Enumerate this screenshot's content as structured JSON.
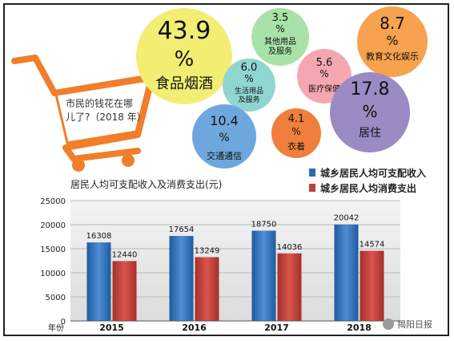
{
  "bubbles": [
    {
      "pct": "43.9",
      "unit": "%",
      "label": "食品烟酒",
      "color": "#f2ee74"
    },
    {
      "pct": "3.5",
      "unit": "%",
      "label": "其他用品\n及服务",
      "color": "#a8e2a8"
    },
    {
      "pct": "8.7",
      "unit": "%",
      "label": "教育文化娱乐",
      "color": "#f7a24e"
    },
    {
      "pct": "6.0",
      "unit": "%",
      "label": "生活用品\n及服务",
      "color": "#8fd5d0"
    },
    {
      "pct": "5.6",
      "unit": "%",
      "label": "医疗保健",
      "color": "#f4a7b0"
    },
    {
      "pct": "17.8",
      "unit": "%",
      "label": "居住",
      "color": "#9b8ac4"
    },
    {
      "pct": "10.4",
      "unit": "%",
      "label": "交通通信",
      "color": "#6ea7dd"
    },
    {
      "pct": "4.1",
      "unit": "%",
      "label": "衣着",
      "color": "#f07e3c"
    }
  ],
  "cart": {
    "text_line1": "市民的钱花在哪",
    "text_line2": "儿了?（2018 年）",
    "color": "#f07e2a"
  },
  "chart_data": {
    "type": "bar",
    "title": "居民人均可支配收入及消费支出(元)",
    "xlabel": "年份",
    "categories": [
      "2015",
      "2016",
      "2017",
      "2018"
    ],
    "series": [
      {
        "name": "城乡居民人均可支配收入",
        "values": [
          16308,
          17654,
          18750,
          20042
        ],
        "color": "#2f6bb3"
      },
      {
        "name": "城乡居民人均消费支出",
        "values": [
          12440,
          13249,
          14036,
          14574
        ],
        "color": "#c0403a"
      }
    ],
    "ylim": [
      0,
      25000
    ],
    "yticks": [
      0,
      5000,
      10000,
      15000,
      20000,
      25000
    ],
    "grid": true,
    "legend": "top-right"
  },
  "watermark": "揭阳日报"
}
